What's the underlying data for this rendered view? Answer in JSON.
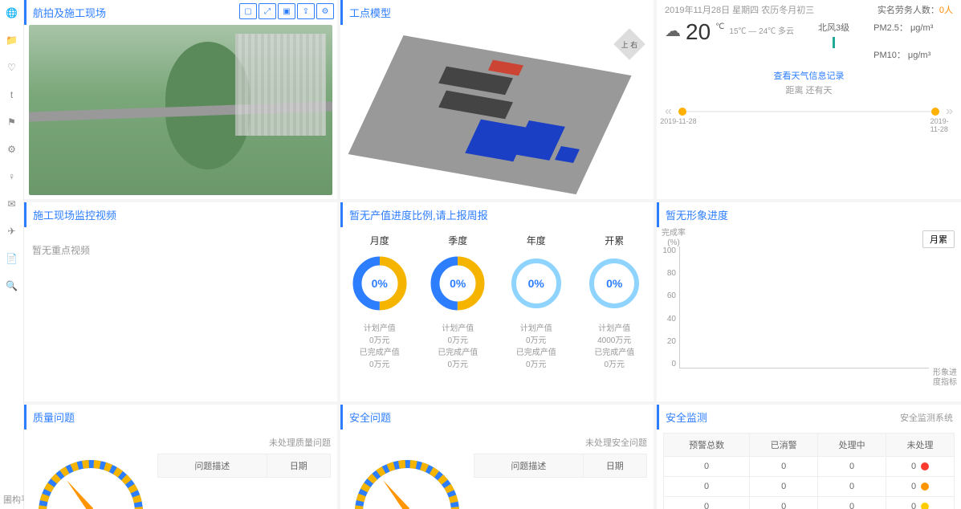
{
  "sidebar_icons": [
    "globe",
    "folder",
    "heart",
    "t",
    "flag",
    "gear",
    "bulb",
    "inbox",
    "send",
    "case",
    "search"
  ],
  "brand": "圃构平台",
  "panels": {
    "aerial": {
      "title": "航拍及施工现场"
    },
    "model": {
      "title": "工点模型",
      "compass": "上 右"
    },
    "weather": {
      "date": "2019年11月28日 星期四 农历冬月初三",
      "labor_label": "实名劳务人数：",
      "labor_value": "0人",
      "temp": "20",
      "temp_unit": "℃",
      "range": "15℃ — 24℃ 多云",
      "wind": "北风3级",
      "pm25_label": "PM2.5：",
      "pm25_unit": "μg/m³",
      "pm10_label": "PM10：",
      "pm10_unit": "μg/m³",
      "link": "查看天气信息记录",
      "countdown": "距离 还有天",
      "slider_left": "2019-11-28",
      "slider_right": "2019-11-28"
    },
    "video": {
      "title": "施工现场监控视频",
      "empty": "暂无重点视频"
    },
    "progress": {
      "title": "暂无产值进度比例,请上报周报",
      "cols": [
        {
          "label": "月度",
          "pct": "0%",
          "plan": "计划产值",
          "plan_v": "0万元",
          "done": "已完成产值",
          "done_v": "0万元",
          "style": "bi",
          "c1": "#f5b400",
          "c2": "#2d7eff"
        },
        {
          "label": "季度",
          "pct": "0%",
          "plan": "计划产值",
          "plan_v": "0万元",
          "done": "已完成产值",
          "done_v": "0万元",
          "style": "bi",
          "c1": "#f5b400",
          "c2": "#2d7eff"
        },
        {
          "label": "年度",
          "pct": "0%",
          "plan": "计划产值",
          "plan_v": "0万元",
          "done": "已完成产值",
          "done_v": "0万元",
          "style": "ring",
          "c1": "#8fd4ff"
        },
        {
          "label": "开累",
          "pct": "0%",
          "plan": "计划产值",
          "plan_v": "4000万元",
          "done": "已完成产值",
          "done_v": "0万元",
          "style": "ring",
          "c1": "#8fd4ff"
        }
      ]
    },
    "image_progress": {
      "title": "暂无形象进度",
      "button": "月累",
      "ylabel_top": "完成率",
      "ylabel_unit": "(%)",
      "yticks": [
        "100",
        "80",
        "60",
        "40",
        "20",
        "0"
      ],
      "xlabel": "形象进度指标"
    },
    "quality": {
      "title": "质量问题",
      "sub": "未处理质量问题",
      "cols": [
        "问题描述",
        "日期"
      ]
    },
    "safety": {
      "title": "安全问题",
      "sub": "未处理安全问题",
      "cols": [
        "问题描述",
        "日期"
      ]
    },
    "monitor": {
      "title": "安全监测",
      "sub": "安全监测系统",
      "headers": [
        "预警总数",
        "已消警",
        "处理中",
        "未处理"
      ],
      "rows": [
        {
          "vals": [
            "0",
            "0",
            "0",
            "0"
          ],
          "color": "#ff3b30"
        },
        {
          "vals": [
            "0",
            "0",
            "0",
            "0"
          ],
          "color": "#ff9500"
        },
        {
          "vals": [
            "0",
            "0",
            "0",
            "0"
          ],
          "color": "#ffcc00"
        }
      ]
    }
  }
}
